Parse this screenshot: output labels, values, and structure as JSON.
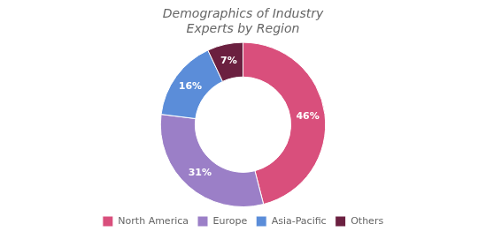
{
  "chart_data": {
    "type": "doughnut",
    "title": "Demographics of Industry\nExperts by Region",
    "categories": [
      "North America",
      "Europe",
      "Asia-Pacific",
      "Others"
    ],
    "values": [
      46,
      31,
      16,
      7
    ],
    "value_labels": [
      "46%",
      "31%",
      "16%",
      "7%"
    ],
    "colors": [
      "#D94F7C",
      "#9B7FC7",
      "#5B8DD9",
      "#6B2040"
    ],
    "data_labels": true,
    "legend": "bottom"
  }
}
